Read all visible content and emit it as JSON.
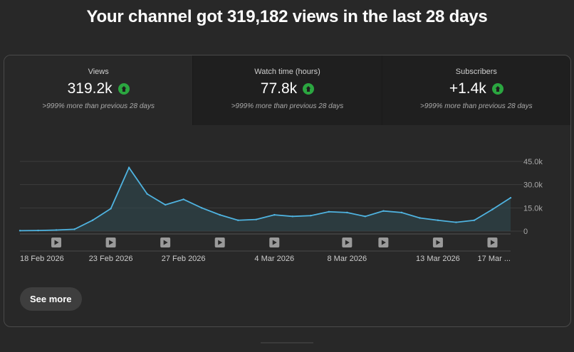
{
  "headline": "Your channel got 319,182 views in the last 28 days",
  "tabs": [
    {
      "label": "Views",
      "value": "319.2k",
      "note": ">999% more than previous 28 days",
      "icon": "arrow-up-circle-icon"
    },
    {
      "label": "Watch time (hours)",
      "value": "77.8k",
      "note": ">999% more than previous 28 days",
      "icon": "arrow-up-circle-icon"
    },
    {
      "label": "Subscribers",
      "value": "+1.4k",
      "note": ">999% more than previous 28 days",
      "icon": "arrow-up-circle-icon"
    }
  ],
  "colors": {
    "line": "#4fb3e0",
    "fill": "#2f4a52",
    "up": "#2ba640"
  },
  "chart_data": {
    "type": "area",
    "series": [
      {
        "values": [
          300,
          400,
          700,
          1200,
          7000,
          14500,
          41000,
          24000,
          17000,
          20500,
          15000,
          10500,
          7000,
          7500,
          10500,
          9500,
          10000,
          12500,
          12000,
          9500,
          13000,
          12000,
          8500,
          7000,
          5700,
          7000,
          14000,
          21500
        ]
      }
    ],
    "y_ticks": [
      "45.0k",
      "30.0k",
      "15.0k",
      "0"
    ],
    "ylim": [
      0,
      45000
    ],
    "x_labels": [
      "18 Feb 2026",
      "23 Feb 2026",
      "27 Feb 2026",
      "4 Mar 2026",
      "8 Mar 2026",
      "13 Mar 2026",
      "17 Mar ..."
    ],
    "x_label_days": [
      0,
      5,
      9,
      14,
      18,
      23,
      27
    ],
    "video_marker_days": [
      2,
      5,
      8,
      11,
      14,
      18,
      20,
      23,
      26
    ],
    "grid": true
  },
  "see_more": "See more"
}
